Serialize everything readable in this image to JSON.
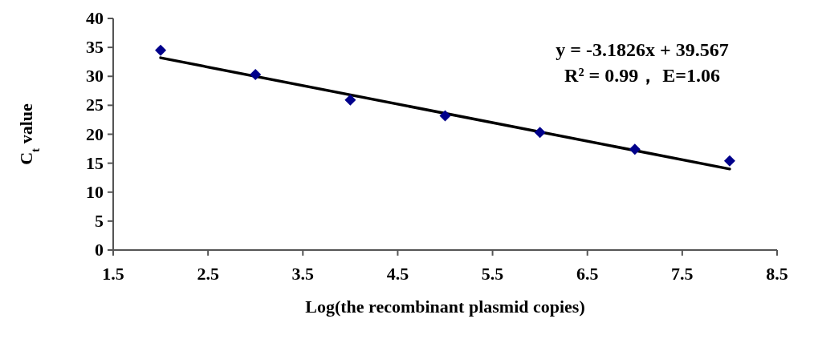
{
  "chart_data": {
    "type": "scatter",
    "xlabel": "Log(the recombinant plasmid copies)",
    "ylabel": "C$_{t}$ value",
    "x": [
      2,
      3,
      4,
      5,
      6,
      7,
      8
    ],
    "series": [
      {
        "color": "#00008b",
        "marker": "diamond",
        "values": [
          34.5,
          30.3,
          25.9,
          23.2,
          20.3,
          17.4,
          15.4
        ]
      },
      {
        "type": "line",
        "color": "#000000",
        "x": [
          2,
          8
        ],
        "values": [
          33.2,
          14.0
        ],
        "line_style": "solid"
      }
    ],
    "xlim": [
      1.5,
      8.5
    ],
    "xticks": [
      1.5,
      2.5,
      3.5,
      4.5,
      5.5,
      6.5,
      7.5,
      8.5
    ],
    "ylim": [
      0,
      40
    ],
    "yticks": [
      0,
      5,
      10,
      15,
      20,
      25,
      30,
      35,
      40
    ],
    "grid": false,
    "annotations": [
      "y = -3.1826x + 39.567",
      "R² = 0.99，  E=1.06"
    ]
  }
}
